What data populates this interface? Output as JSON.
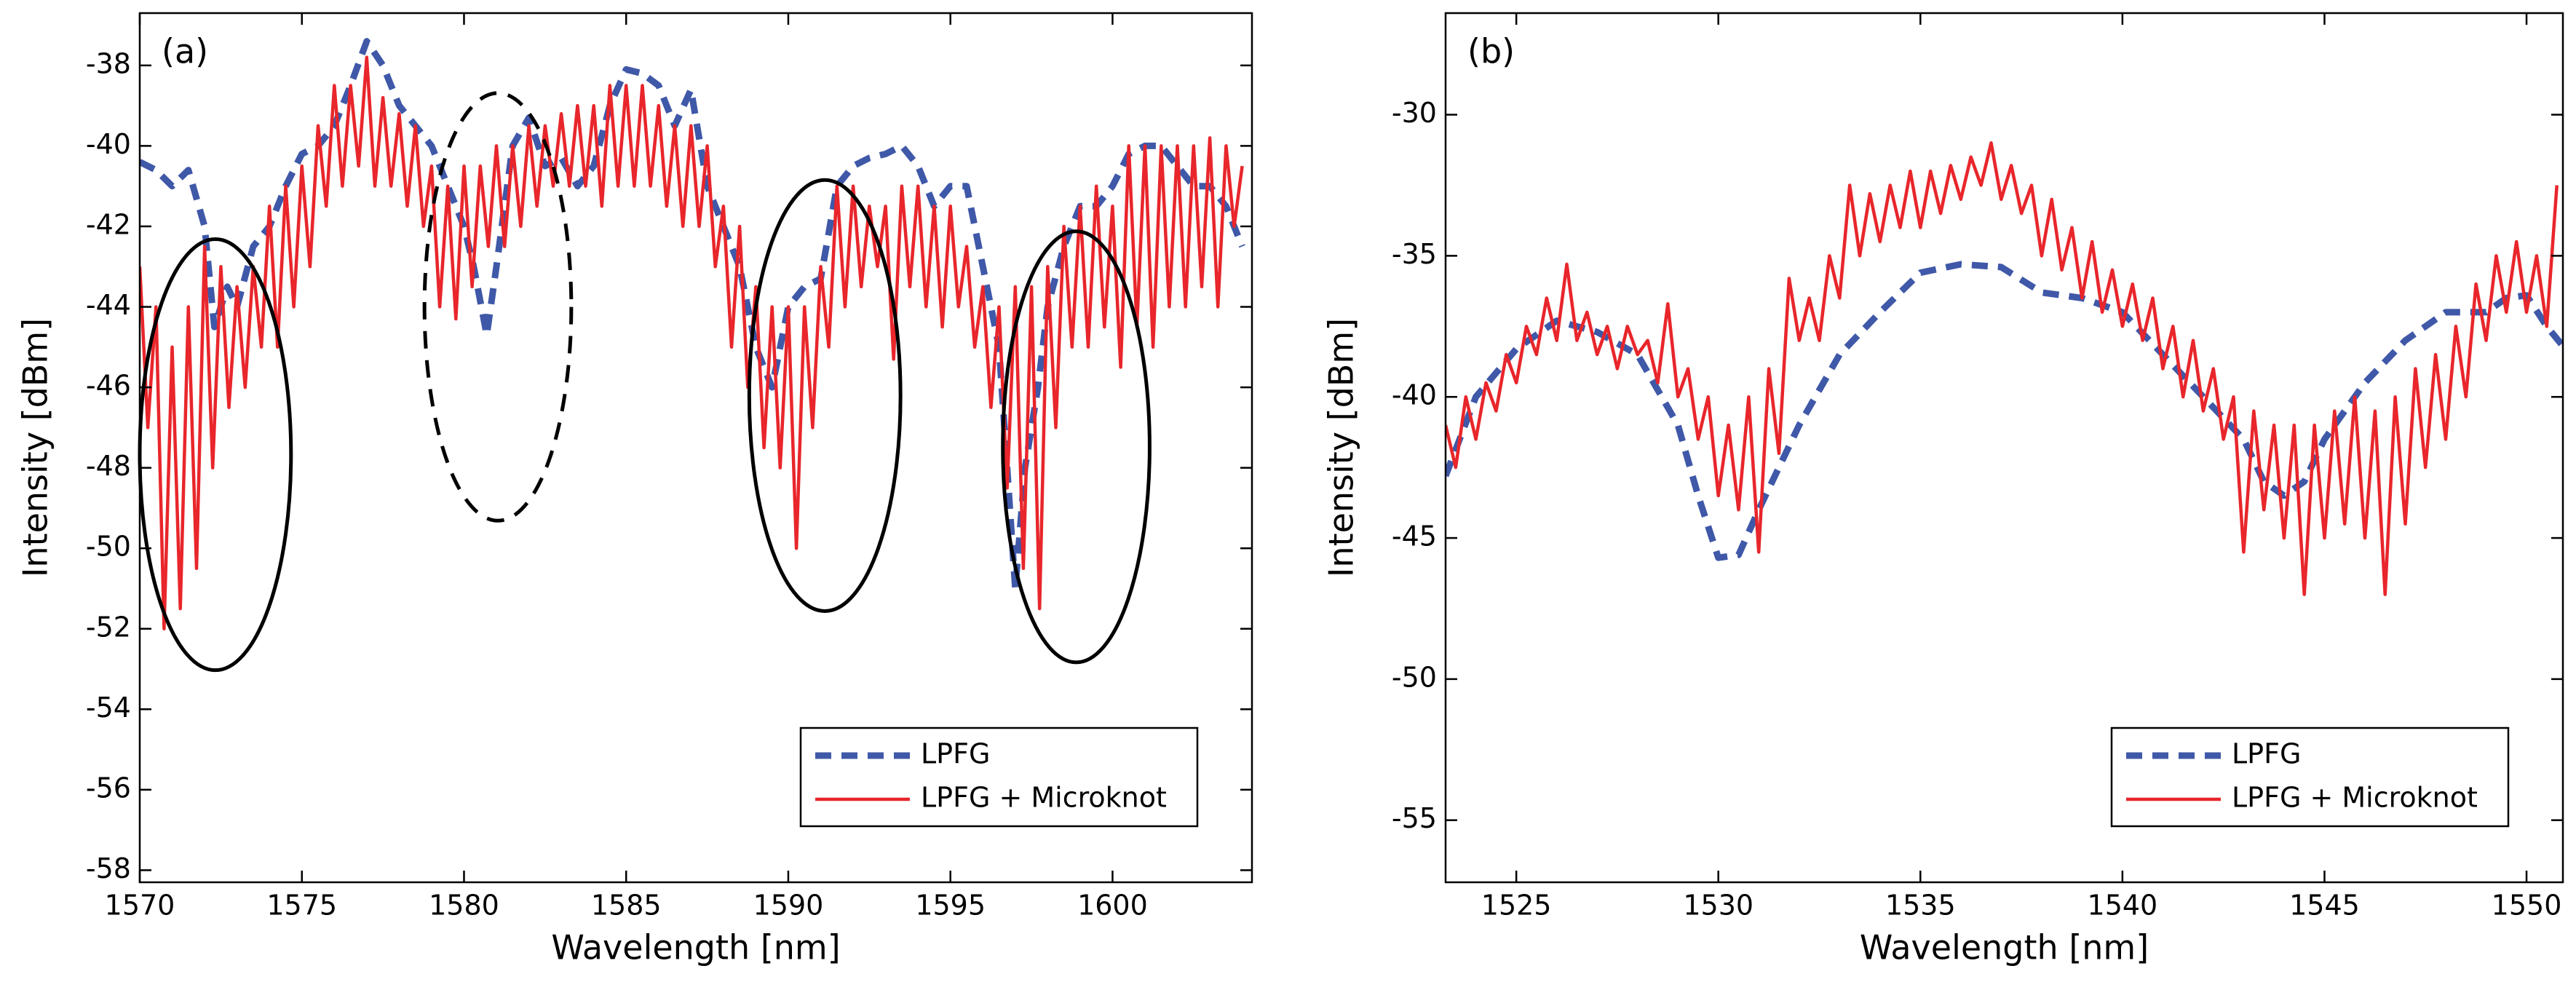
{
  "chart_data": [
    {
      "type": "line",
      "annotation": "(a)",
      "xlabel": "Wavelength [nm]",
      "ylabel": "Intensity [dBm]",
      "xlim": [
        1570,
        1604.3
      ],
      "ylim": [
        -58.3,
        -36.7
      ],
      "xticks": [
        1570,
        1575,
        1580,
        1585,
        1590,
        1595,
        1600
      ],
      "yticks": [
        -38,
        -40,
        -42,
        -44,
        -46,
        -48,
        -50,
        -52,
        -54,
        -56,
        -58
      ],
      "legend": "lower right",
      "series": [
        {
          "name": "LPFG",
          "color": "#3f58a8",
          "linestyle": "dashed",
          "x": [
            1570,
            1570.5,
            1571,
            1571.5,
            1572,
            1572.3,
            1572.7,
            1573,
            1573.5,
            1574,
            1574.5,
            1575,
            1575.5,
            1576,
            1576.5,
            1577,
            1577.5,
            1578,
            1578.5,
            1579,
            1579.5,
            1580,
            1580.3,
            1580.7,
            1581,
            1581.5,
            1582,
            1582.5,
            1583,
            1583.5,
            1584,
            1584.5,
            1585,
            1585.5,
            1586,
            1586.5,
            1587,
            1587.5,
            1588,
            1588.5,
            1589,
            1589.5,
            1590,
            1590.5,
            1591,
            1591.5,
            1592,
            1592.5,
            1593,
            1593.5,
            1594,
            1594.5,
            1595,
            1595.5,
            1596,
            1596.5,
            1597,
            1597.3,
            1597.7,
            1598,
            1598.5,
            1599,
            1599.5,
            1600,
            1600.5,
            1601,
            1601.5,
            1602,
            1602.5,
            1603,
            1603.5,
            1604
          ],
          "values": [
            -40.4,
            -40.6,
            -41,
            -40.6,
            -42,
            -44.5,
            -43.5,
            -44,
            -42.5,
            -42,
            -41,
            -40.2,
            -40,
            -39.5,
            -38.5,
            -37.4,
            -38,
            -39,
            -39.5,
            -40,
            -41,
            -42,
            -43,
            -44.7,
            -43,
            -40,
            -39.3,
            -40.5,
            -40.3,
            -41,
            -40.5,
            -39,
            -38.1,
            -38.2,
            -38.5,
            -39.5,
            -38.6,
            -41,
            -42,
            -43,
            -45,
            -46,
            -44,
            -43.5,
            -43.3,
            -41,
            -40.5,
            -40.3,
            -40.2,
            -40,
            -40.5,
            -41.5,
            -41,
            -41,
            -43,
            -45,
            -51,
            -48,
            -46,
            -44,
            -42.5,
            -41.5,
            -41.5,
            -41,
            -40.2,
            -40,
            -40,
            -40.5,
            -41,
            -41,
            -41.5,
            -42.5
          ]
        },
        {
          "name": "LPFG + Microknot",
          "color": "#e8262b",
          "linestyle": "solid",
          "x": [
            1570,
            1570.25,
            1570.5,
            1570.75,
            1571,
            1571.25,
            1571.5,
            1571.75,
            1572,
            1572.25,
            1572.5,
            1572.75,
            1573,
            1573.25,
            1573.5,
            1573.75,
            1574,
            1574.25,
            1574.5,
            1574.75,
            1575,
            1575.25,
            1575.5,
            1575.75,
            1576,
            1576.25,
            1576.5,
            1576.75,
            1577,
            1577.25,
            1577.5,
            1577.75,
            1578,
            1578.25,
            1578.5,
            1578.75,
            1579,
            1579.25,
            1579.5,
            1579.75,
            1580,
            1580.25,
            1580.5,
            1580.75,
            1581,
            1581.25,
            1581.5,
            1581.75,
            1582,
            1582.25,
            1582.5,
            1582.75,
            1583,
            1583.25,
            1583.5,
            1583.75,
            1584,
            1584.25,
            1584.5,
            1584.75,
            1585,
            1585.25,
            1585.5,
            1585.75,
            1586,
            1586.25,
            1586.5,
            1586.75,
            1587,
            1587.25,
            1587.5,
            1587.75,
            1588,
            1588.25,
            1588.5,
            1588.75,
            1589,
            1589.25,
            1589.5,
            1589.75,
            1590,
            1590.25,
            1590.5,
            1590.75,
            1591,
            1591.25,
            1591.5,
            1591.75,
            1592,
            1592.25,
            1592.5,
            1592.75,
            1593,
            1593.25,
            1593.5,
            1593.75,
            1594,
            1594.25,
            1594.5,
            1594.75,
            1595,
            1595.25,
            1595.5,
            1595.75,
            1596,
            1596.25,
            1596.5,
            1596.75,
            1597,
            1597.25,
            1597.5,
            1597.75,
            1598,
            1598.25,
            1598.5,
            1598.75,
            1599,
            1599.25,
            1599.5,
            1599.75,
            1600,
            1600.25,
            1600.5,
            1600.75,
            1601,
            1601.25,
            1601.5,
            1601.75,
            1602,
            1602.25,
            1602.5,
            1602.75,
            1603,
            1603.25,
            1603.5,
            1603.75,
            1604
          ],
          "values": [
            -43,
            -47,
            -44,
            -52,
            -45,
            -51.5,
            -44,
            -50.5,
            -42.5,
            -48,
            -43,
            -46.5,
            -43.5,
            -46,
            -43,
            -45,
            -41.5,
            -45,
            -41,
            -44,
            -40.5,
            -43,
            -39.5,
            -41.5,
            -38.5,
            -41,
            -38.5,
            -40.5,
            -37.8,
            -41,
            -38.8,
            -41,
            -39.2,
            -41.5,
            -39.5,
            -42,
            -40.5,
            -44,
            -41,
            -44.3,
            -40.5,
            -43.5,
            -40.5,
            -42.5,
            -40,
            -42.5,
            -40,
            -42,
            -39.5,
            -41.5,
            -39.5,
            -41,
            -39.2,
            -41,
            -39,
            -41,
            -39,
            -41.5,
            -38.5,
            -41,
            -38.5,
            -41,
            -38.5,
            -41,
            -39,
            -41.5,
            -39.5,
            -42,
            -39.5,
            -42,
            -40,
            -43,
            -41.5,
            -45,
            -42,
            -46,
            -43.5,
            -47.5,
            -44,
            -48,
            -44,
            -50,
            -44,
            -47,
            -43,
            -45,
            -41,
            -44,
            -41,
            -43.5,
            -41.5,
            -43,
            -41.5,
            -45.3,
            -41,
            -43.5,
            -41,
            -44,
            -41.5,
            -44.5,
            -41.5,
            -44,
            -42.5,
            -45,
            -43.5,
            -46.5,
            -44,
            -48.5,
            -43.5,
            -50.5,
            -43.5,
            -51.5,
            -43,
            -47,
            -42,
            -45,
            -41.5,
            -45,
            -41,
            -44.5,
            -41.5,
            -45.5,
            -40,
            -44.5,
            -40,
            -45,
            -40,
            -44,
            -40,
            -44,
            -40,
            -43.5,
            -39.8,
            -44,
            -40,
            -42,
            -40.5
          ]
        }
      ]
    },
    {
      "type": "line",
      "annotation": "(b)",
      "xlabel": "Wavelength [nm]",
      "ylabel": "Intensity [dBm]",
      "xlim": [
        1523.25,
        1550.9
      ],
      "ylim": [
        -57.2,
        -26.4
      ],
      "xticks": [
        1525,
        1530,
        1535,
        1540,
        1545,
        1550
      ],
      "yticks": [
        -30,
        -35,
        -40,
        -45,
        -50,
        -55
      ],
      "legend": "lower right",
      "series": [
        {
          "name": "LPFG",
          "color": "#3f58a8",
          "linestyle": "dashed",
          "x": [
            1523.25,
            1524,
            1525,
            1526,
            1527,
            1528,
            1529,
            1529.5,
            1530,
            1530.5,
            1531,
            1532,
            1533,
            1534,
            1535,
            1536,
            1537,
            1538,
            1539,
            1540,
            1541,
            1542,
            1543,
            1543.5,
            1544,
            1544.5,
            1545,
            1546,
            1547,
            1548,
            1549,
            1549.5,
            1550,
            1550.5,
            1550.9
          ],
          "values": [
            -42.8,
            -40,
            -38.3,
            -37.3,
            -37.7,
            -38.5,
            -41,
            -43.5,
            -45.7,
            -45.6,
            -44,
            -41,
            -38.5,
            -37,
            -35.6,
            -35.3,
            -35.4,
            -36.3,
            -36.5,
            -37,
            -38.5,
            -40,
            -41.5,
            -43,
            -43.5,
            -43,
            -41.5,
            -39.5,
            -38,
            -37,
            -37,
            -36.5,
            -36.4,
            -37.5,
            -38.2
          ]
        },
        {
          "name": "LPFG + Microknot",
          "color": "#e8262b",
          "linestyle": "solid",
          "x": [
            1523.25,
            1523.5,
            1523.75,
            1524,
            1524.25,
            1524.5,
            1524.75,
            1525,
            1525.25,
            1525.5,
            1525.75,
            1526,
            1526.25,
            1526.5,
            1526.75,
            1527,
            1527.25,
            1527.5,
            1527.75,
            1528,
            1528.25,
            1528.5,
            1528.75,
            1529,
            1529.25,
            1529.5,
            1529.75,
            1530,
            1530.25,
            1530.5,
            1530.75,
            1531,
            1531.25,
            1531.5,
            1531.75,
            1532,
            1532.25,
            1532.5,
            1532.75,
            1533,
            1533.25,
            1533.5,
            1533.75,
            1534,
            1534.25,
            1534.5,
            1534.75,
            1535,
            1535.25,
            1535.5,
            1535.75,
            1536,
            1536.25,
            1536.5,
            1536.75,
            1537,
            1537.25,
            1537.5,
            1537.75,
            1538,
            1538.25,
            1538.5,
            1538.75,
            1539,
            1539.25,
            1539.5,
            1539.75,
            1540,
            1540.25,
            1540.5,
            1540.75,
            1541,
            1541.25,
            1541.5,
            1541.75,
            1542,
            1542.25,
            1542.5,
            1542.75,
            1543,
            1543.25,
            1543.5,
            1543.75,
            1544,
            1544.25,
            1544.5,
            1544.75,
            1545,
            1545.25,
            1545.5,
            1545.75,
            1546,
            1546.25,
            1546.5,
            1546.75,
            1547,
            1547.25,
            1547.5,
            1547.75,
            1548,
            1548.25,
            1548.5,
            1548.75,
            1549,
            1549.25,
            1549.5,
            1549.75,
            1550,
            1550.25,
            1550.5,
            1550.75
          ],
          "values": [
            -41,
            -42.5,
            -40,
            -41.5,
            -39.5,
            -40.5,
            -38.5,
            -39.5,
            -37.5,
            -38.5,
            -36.5,
            -38,
            -35.3,
            -38,
            -37,
            -38.5,
            -37.5,
            -39,
            -37.5,
            -38.5,
            -38,
            -39.5,
            -36.7,
            -40,
            -39,
            -41.5,
            -40,
            -43.5,
            -41,
            -44,
            -40,
            -45.5,
            -39,
            -42,
            -35.8,
            -38,
            -36.5,
            -38,
            -35,
            -36.5,
            -32.5,
            -35,
            -32.8,
            -34.5,
            -32.5,
            -34,
            -32,
            -34,
            -32,
            -33.5,
            -31.8,
            -33,
            -31.5,
            -32.5,
            -31,
            -33,
            -31.8,
            -33.5,
            -32.5,
            -35,
            -33,
            -35.5,
            -34,
            -36.5,
            -34.5,
            -37,
            -35.5,
            -37.5,
            -36,
            -38,
            -36.5,
            -39,
            -37.5,
            -40,
            -38,
            -40.5,
            -39,
            -41.5,
            -40,
            -45.5,
            -40.5,
            -44,
            -41,
            -45,
            -41,
            -47,
            -41,
            -45,
            -40.5,
            -44.5,
            -40,
            -45,
            -40.5,
            -47,
            -40,
            -44.5,
            -39,
            -42.5,
            -38.5,
            -41.5,
            -37.5,
            -40,
            -36,
            -38,
            -35,
            -37,
            -34.5,
            -37,
            -35,
            -37.5,
            -32.5
          ]
        }
      ]
    }
  ]
}
